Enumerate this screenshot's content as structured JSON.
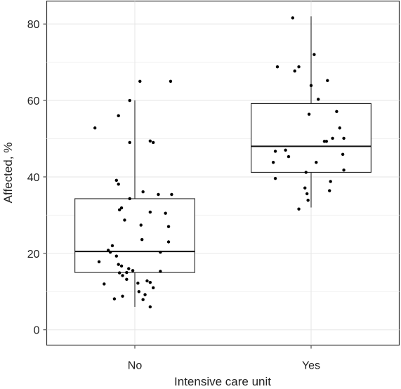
{
  "chart_data": {
    "type": "box",
    "xlabel": "Intensive care unit",
    "ylabel": "Affected, %",
    "ylim": [
      -4,
      86
    ],
    "yticks": [
      0,
      20,
      40,
      60,
      80
    ],
    "grid": true,
    "categories": [
      "No",
      "Yes"
    ],
    "boxes": [
      {
        "category": "No",
        "min": 6,
        "q1": 15,
        "median": 20.5,
        "q3": 34.3,
        "max": 60,
        "points": [
          [
            -0.39,
            52.8
          ],
          [
            -0.16,
            56
          ],
          [
            -0.05,
            60
          ],
          [
            0.05,
            65
          ],
          [
            0.35,
            65
          ],
          [
            -0.05,
            49
          ],
          [
            0.15,
            49.4
          ],
          [
            0.18,
            49
          ],
          [
            -0.18,
            39.1
          ],
          [
            -0.16,
            38.1
          ],
          [
            0.08,
            36.1
          ],
          [
            0.23,
            35.4
          ],
          [
            0.36,
            35.4
          ],
          [
            -0.05,
            34.3
          ],
          [
            -0.13,
            31.9
          ],
          [
            -0.15,
            31.4
          ],
          [
            0.15,
            30.8
          ],
          [
            0.3,
            30.5
          ],
          [
            -0.1,
            28.7
          ],
          [
            0.06,
            27.4
          ],
          [
            0.33,
            27.0
          ],
          [
            0.07,
            23.6
          ],
          [
            0.33,
            23.0
          ],
          [
            -0.24,
            20.3
          ],
          [
            -0.26,
            20.8
          ],
          [
            -0.22,
            22.0
          ],
          [
            0.25,
            20.3
          ],
          [
            -0.18,
            19.3
          ],
          [
            -0.35,
            17.8
          ],
          [
            -0.16,
            17.1
          ],
          [
            -0.13,
            16.7
          ],
          [
            -0.06,
            16.0
          ],
          [
            -0.02,
            15.5
          ],
          [
            0.25,
            15.3
          ],
          [
            -0.15,
            14.9
          ],
          [
            -0.08,
            15.0
          ],
          [
            -0.12,
            14.2
          ],
          [
            -0.08,
            13.2
          ],
          [
            -0.3,
            12.0
          ],
          [
            0.03,
            12.2
          ],
          [
            0.12,
            12.8
          ],
          [
            0.15,
            12.4
          ],
          [
            0.18,
            11.0
          ],
          [
            0.04,
            10.0
          ],
          [
            0.1,
            9.2
          ],
          [
            -0.12,
            8.8
          ],
          [
            -0.2,
            8.1
          ],
          [
            0.08,
            7.9
          ],
          [
            0.15,
            6.0
          ]
        ]
      },
      {
        "category": "Yes",
        "min": 32,
        "q1": 41.2,
        "median": 48,
        "q3": 59.2,
        "max": 82,
        "points": [
          [
            -0.18,
            81.6
          ],
          [
            0.03,
            72
          ],
          [
            0.16,
            65.2
          ],
          [
            -0.33,
            68.8
          ],
          [
            -0.12,
            68.8
          ],
          [
            -0.16,
            67.7
          ],
          [
            0.0,
            63.9
          ],
          [
            0.07,
            60.3
          ],
          [
            0.25,
            57.1
          ],
          [
            -0.02,
            56.4
          ],
          [
            0.28,
            52.8
          ],
          [
            0.32,
            50.1
          ],
          [
            0.21,
            50.1
          ],
          [
            0.13,
            49.3
          ],
          [
            0.15,
            49.3
          ],
          [
            -0.25,
            47.0
          ],
          [
            -0.35,
            46.7
          ],
          [
            -0.22,
            45.3
          ],
          [
            0.31,
            45.9
          ],
          [
            -0.37,
            43.8
          ],
          [
            0.05,
            43.8
          ],
          [
            0.32,
            41.8
          ],
          [
            -0.05,
            41.2
          ],
          [
            -0.35,
            39.6
          ],
          [
            0.19,
            38.8
          ],
          [
            -0.06,
            37.1
          ],
          [
            -0.04,
            35.6
          ],
          [
            0.18,
            36.4
          ],
          [
            -0.03,
            33.9
          ],
          [
            -0.12,
            31.6
          ]
        ]
      }
    ]
  }
}
